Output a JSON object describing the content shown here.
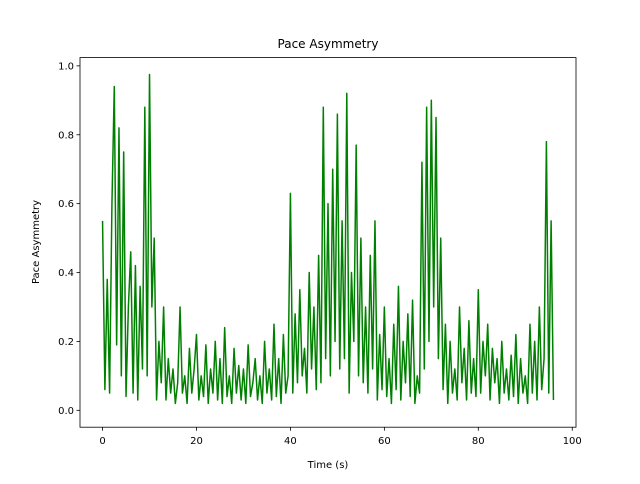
{
  "chart_data": {
    "type": "line",
    "title": "Pace Asymmetry",
    "xlabel": "Time (s)",
    "ylabel": "Pace Asymmetry",
    "x": [
      0,
      0.5,
      1,
      1.5,
      2,
      2.5,
      3,
      3.5,
      4,
      4.5,
      5,
      5.5,
      6,
      6.5,
      7,
      7.5,
      8,
      8.5,
      9,
      9.5,
      10,
      10.5,
      11,
      11.5,
      12,
      12.5,
      13,
      13.5,
      14,
      14.5,
      15,
      15.5,
      16,
      16.5,
      17,
      17.5,
      18,
      18.5,
      19,
      19.5,
      20,
      20.5,
      21,
      21.5,
      22,
      22.5,
      23,
      23.5,
      24,
      24.5,
      25,
      25.5,
      26,
      26.5,
      27,
      27.5,
      28,
      28.5,
      29,
      29.5,
      30,
      30.5,
      31,
      31.5,
      32,
      32.5,
      33,
      33.5,
      34,
      34.5,
      35,
      35.5,
      36,
      36.5,
      37,
      37.5,
      38,
      38.5,
      39,
      39.5,
      40,
      40.5,
      41,
      41.5,
      42,
      42.5,
      43,
      43.5,
      44,
      44.5,
      45,
      45.5,
      46,
      46.5,
      47,
      47.5,
      48,
      48.5,
      49,
      49.5,
      50,
      50.5,
      51,
      51.5,
      52,
      52.5,
      53,
      53.5,
      54,
      54.5,
      55,
      55.5,
      56,
      56.5,
      57,
      57.5,
      58,
      58.5,
      59,
      59.5,
      60,
      60.5,
      61,
      61.5,
      62,
      62.5,
      63,
      63.5,
      64,
      64.5,
      65,
      65.5,
      66,
      66.5,
      67,
      67.5,
      68,
      68.5,
      69,
      69.5,
      70,
      70.5,
      71,
      71.5,
      72,
      72.5,
      73,
      73.5,
      74,
      74.5,
      75,
      75.5,
      76,
      76.5,
      77,
      77.5,
      78,
      78.5,
      79,
      79.5,
      80,
      80.5,
      81,
      81.5,
      82,
      82.5,
      83,
      83.5,
      84,
      84.5,
      85,
      85.5,
      86,
      86.5,
      87,
      87.5,
      88,
      88.5,
      89,
      89.5,
      90,
      90.5,
      91,
      91.5,
      92,
      92.5,
      93,
      93.5,
      94,
      94.5,
      95,
      95.5,
      96
    ],
    "series": [
      {
        "name": "Pace Asymmetry",
        "color": "#008000",
        "values": [
          0.55,
          0.06,
          0.38,
          0.05,
          0.6,
          0.94,
          0.19,
          0.82,
          0.1,
          0.75,
          0.04,
          0.3,
          0.46,
          0.05,
          0.42,
          0.03,
          0.36,
          0.12,
          0.88,
          0.1,
          0.975,
          0.3,
          0.5,
          0.03,
          0.2,
          0.08,
          0.3,
          0.03,
          0.15,
          0.05,
          0.12,
          0.02,
          0.08,
          0.3,
          0.05,
          0.1,
          0.02,
          0.18,
          0.05,
          0.12,
          0.22,
          0.03,
          0.1,
          0.04,
          0.19,
          0.02,
          0.12,
          0.05,
          0.2,
          0.03,
          0.15,
          0.02,
          0.24,
          0.04,
          0.1,
          0.02,
          0.18,
          0.05,
          0.13,
          0.03,
          0.12,
          0.02,
          0.19,
          0.04,
          0.08,
          0.15,
          0.03,
          0.1,
          0.02,
          0.2,
          0.05,
          0.12,
          0.03,
          0.25,
          0.04,
          0.15,
          0.02,
          0.22,
          0.05,
          0.1,
          0.63,
          0.05,
          0.28,
          0.08,
          0.35,
          0.1,
          0.18,
          0.05,
          0.4,
          0.12,
          0.3,
          0.06,
          0.45,
          0.08,
          0.88,
          0.15,
          0.6,
          0.1,
          0.7,
          0.2,
          0.86,
          0.12,
          0.55,
          0.15,
          0.92,
          0.05,
          0.4,
          0.2,
          0.77,
          0.1,
          0.5,
          0.08,
          0.3,
          0.05,
          0.45,
          0.12,
          0.55,
          0.03,
          0.22,
          0.06,
          0.3,
          0.04,
          0.15,
          0.02,
          0.25,
          0.06,
          0.36,
          0.03,
          0.2,
          0.08,
          0.28,
          0.04,
          0.32,
          0.02,
          0.1,
          0.05,
          0.72,
          0.12,
          0.88,
          0.2,
          0.9,
          0.3,
          0.85,
          0.15,
          0.5,
          0.06,
          0.25,
          0.02,
          0.2,
          0.05,
          0.12,
          0.03,
          0.3,
          0.08,
          0.18,
          0.03,
          0.26,
          0.05,
          0.15,
          0.04,
          0.35,
          0.05,
          0.2,
          0.1,
          0.25,
          0.03,
          0.18,
          0.08,
          0.15,
          0.02,
          0.2,
          0.05,
          0.12,
          0.03,
          0.16,
          0.04,
          0.22,
          0.02,
          0.15,
          0.05,
          0.1,
          0.02,
          0.25,
          0.05,
          0.2,
          0.03,
          0.3,
          0.06,
          0.15,
          0.78,
          0.05,
          0.55,
          0.03
        ]
      }
    ],
    "xlim": [
      -4.8,
      100.8
    ],
    "xticks": [
      0,
      20,
      40,
      60,
      80,
      100
    ],
    "ylim": [
      -0.049,
      1.024
    ],
    "yticks": [
      {
        "value": 0,
        "label": "0.0"
      },
      0.2,
      0.4,
      0.6,
      0.8,
      {
        "value": 1,
        "label": "1.0"
      }
    ],
    "grid": false
  }
}
